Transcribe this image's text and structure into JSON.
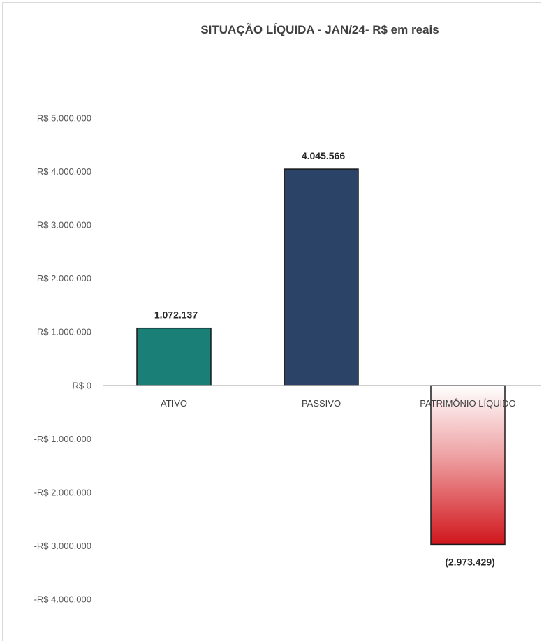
{
  "chart_data": {
    "type": "bar",
    "title": "SITUAÇÃO LÍQUIDA - JAN/24- R$ em reais",
    "xlabel": "",
    "ylabel": "",
    "categories": [
      "ATIVO",
      "PASSIVO",
      "PATRIMÔNIO LÍQUIDO"
    ],
    "values": [
      1072137,
      4045566,
      -2973429
    ],
    "data_labels": [
      "1.072.137",
      "4.045.566",
      "(2.973.429)"
    ],
    "ylim": [
      -4000000,
      5000000
    ],
    "y_ticks": [
      5000000,
      4000000,
      3000000,
      2000000,
      1000000,
      0,
      -1000000,
      -2000000,
      -3000000,
      -4000000
    ],
    "y_tick_labels": [
      "R$ 5.000.000",
      "R$ 4.000.000",
      "R$ 3.000.000",
      "R$ 2.000.000",
      "R$ 1.000.000",
      "R$ 0",
      "-R$ 1.000.000",
      "-R$ 2.000.000",
      "-R$ 3.000.000",
      "-R$ 4.000.000"
    ],
    "grid": false,
    "legend": "none",
    "colors": {
      "ATIVO": "#1a7f77",
      "PASSIVO": "#2a4366",
      "PATRIMÔNIO LÍQUIDO_top": "#ffffff",
      "PATRIMÔNIO LÍQUIDO_bottom": "#d0161c"
    }
  }
}
